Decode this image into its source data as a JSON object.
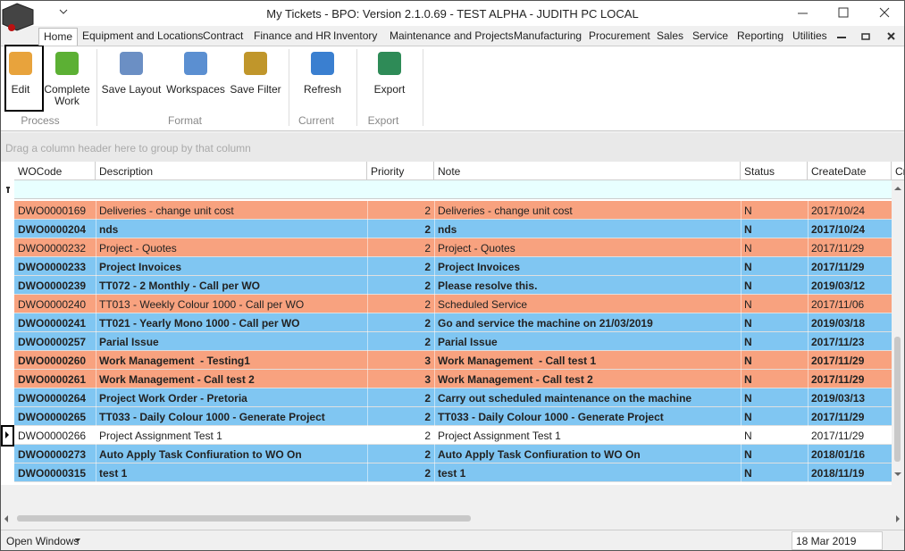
{
  "title": "My Tickets - BPO: Version 2.1.0.69 - TEST ALPHA - JUDITH PC LOCAL",
  "tabs": [
    "Home",
    "Equipment and Locations",
    "Contract",
    "Finance and HR",
    "Inventory",
    "Maintenance and Projects",
    "Manufacturing",
    "Procurement",
    "Sales",
    "Service",
    "Reporting",
    "Utilities"
  ],
  "ribbon": {
    "groups": [
      {
        "label": "Process",
        "buttons": [
          "Edit",
          "Complete Work"
        ]
      },
      {
        "label": "Format",
        "buttons": [
          "Save Layout",
          "Workspaces",
          "Save Filter"
        ]
      },
      {
        "label": "Current",
        "buttons": [
          "Refresh"
        ]
      },
      {
        "label": "Export",
        "buttons": [
          "Export"
        ]
      }
    ]
  },
  "group_panel": "Drag a column header here to group by that column",
  "table": {
    "columns": [
      "WOCode",
      "Description",
      "Priority",
      "Note",
      "Status",
      "CreateDate",
      "Cr"
    ],
    "rows": [
      {
        "cells": [
          "DWO0000169",
          "Deliveries - change unit cost",
          2,
          "Deliveries - change unit cost",
          "N",
          "2017/10/24"
        ],
        "color": "#f8a27f",
        "bold": false
      },
      {
        "cells": [
          "DWO0000204",
          "nds",
          2,
          "nds",
          "N",
          "2017/10/24"
        ],
        "color": "#80c6f2",
        "bold": true
      },
      {
        "cells": [
          "DWO0000232",
          "Project - Quotes",
          2,
          "Project - Quotes",
          "N",
          "2017/11/29"
        ],
        "color": "#f8a27f",
        "bold": false
      },
      {
        "cells": [
          "DWO0000233",
          "Project Invoices",
          2,
          "Project Invoices",
          "N",
          "2017/11/29"
        ],
        "color": "#80c6f2",
        "bold": true
      },
      {
        "cells": [
          "DWO0000239",
          "TT072 - 2 Monthly - Call per WO",
          2,
          "Please resolve this.",
          "N",
          "2019/03/12"
        ],
        "color": "#80c6f2",
        "bold": true
      },
      {
        "cells": [
          "DWO0000240",
          "TT013 - Weekly Colour 1000 - Call per WO",
          2,
          "Scheduled Service",
          "N",
          "2017/11/06"
        ],
        "color": "#f8a27f",
        "bold": false
      },
      {
        "cells": [
          "DWO0000241",
          "TT021 - Yearly Mono 1000 - Call per WO",
          2,
          "Go and service the machine on 21/03/2019",
          "N",
          "2019/03/18"
        ],
        "color": "#80c6f2",
        "bold": true
      },
      {
        "cells": [
          "DWO0000257",
          "Parial Issue",
          2,
          "Parial Issue",
          "N",
          "2017/11/23"
        ],
        "color": "#80c6f2",
        "bold": true
      },
      {
        "cells": [
          "DWO0000260",
          "Work Management  - Testing1",
          3,
          "Work Management  - Call test 1",
          "N",
          "2017/11/29"
        ],
        "color": "#f8a27f",
        "bold": true
      },
      {
        "cells": [
          "DWO0000261",
          "Work Management - Call test 2",
          3,
          "Work Management - Call test 2",
          "N",
          "2017/11/29"
        ],
        "color": "#f8a27f",
        "bold": true
      },
      {
        "cells": [
          "DWO0000264",
          "Project Work Order - Pretoria",
          2,
          "Carry out scheduled maintenance on the machine",
          "N",
          "2019/03/13"
        ],
        "color": "#80c6f2",
        "bold": true
      },
      {
        "cells": [
          "DWO0000265",
          "TT033 - Daily Colour 1000 - Generate Project",
          2,
          "TT033 - Daily Colour 1000 - Generate Project",
          "N",
          "2017/11/29"
        ],
        "color": "#80c6f2",
        "bold": true
      },
      {
        "cells": [
          "DWO0000266",
          "Project Assignment Test 1",
          2,
          "Project Assignment Test 1",
          "N",
          "2017/11/29"
        ],
        "color": "#ffffff",
        "bold": false
      },
      {
        "cells": [
          "DWO0000273",
          "Auto Apply Task Confiuration to WO On",
          2,
          "Auto Apply Task Confiuration to WO On",
          "N",
          "2018/01/16"
        ],
        "color": "#80c6f2",
        "bold": true
      },
      {
        "cells": [
          "DWO0000315",
          "test 1",
          2,
          "test 1",
          "N",
          "2018/11/19"
        ],
        "color": "#80c6f2",
        "bold": true
      }
    ]
  },
  "status_bar": {
    "open_windows": "Open Windows",
    "date": "18 Mar 2019"
  }
}
